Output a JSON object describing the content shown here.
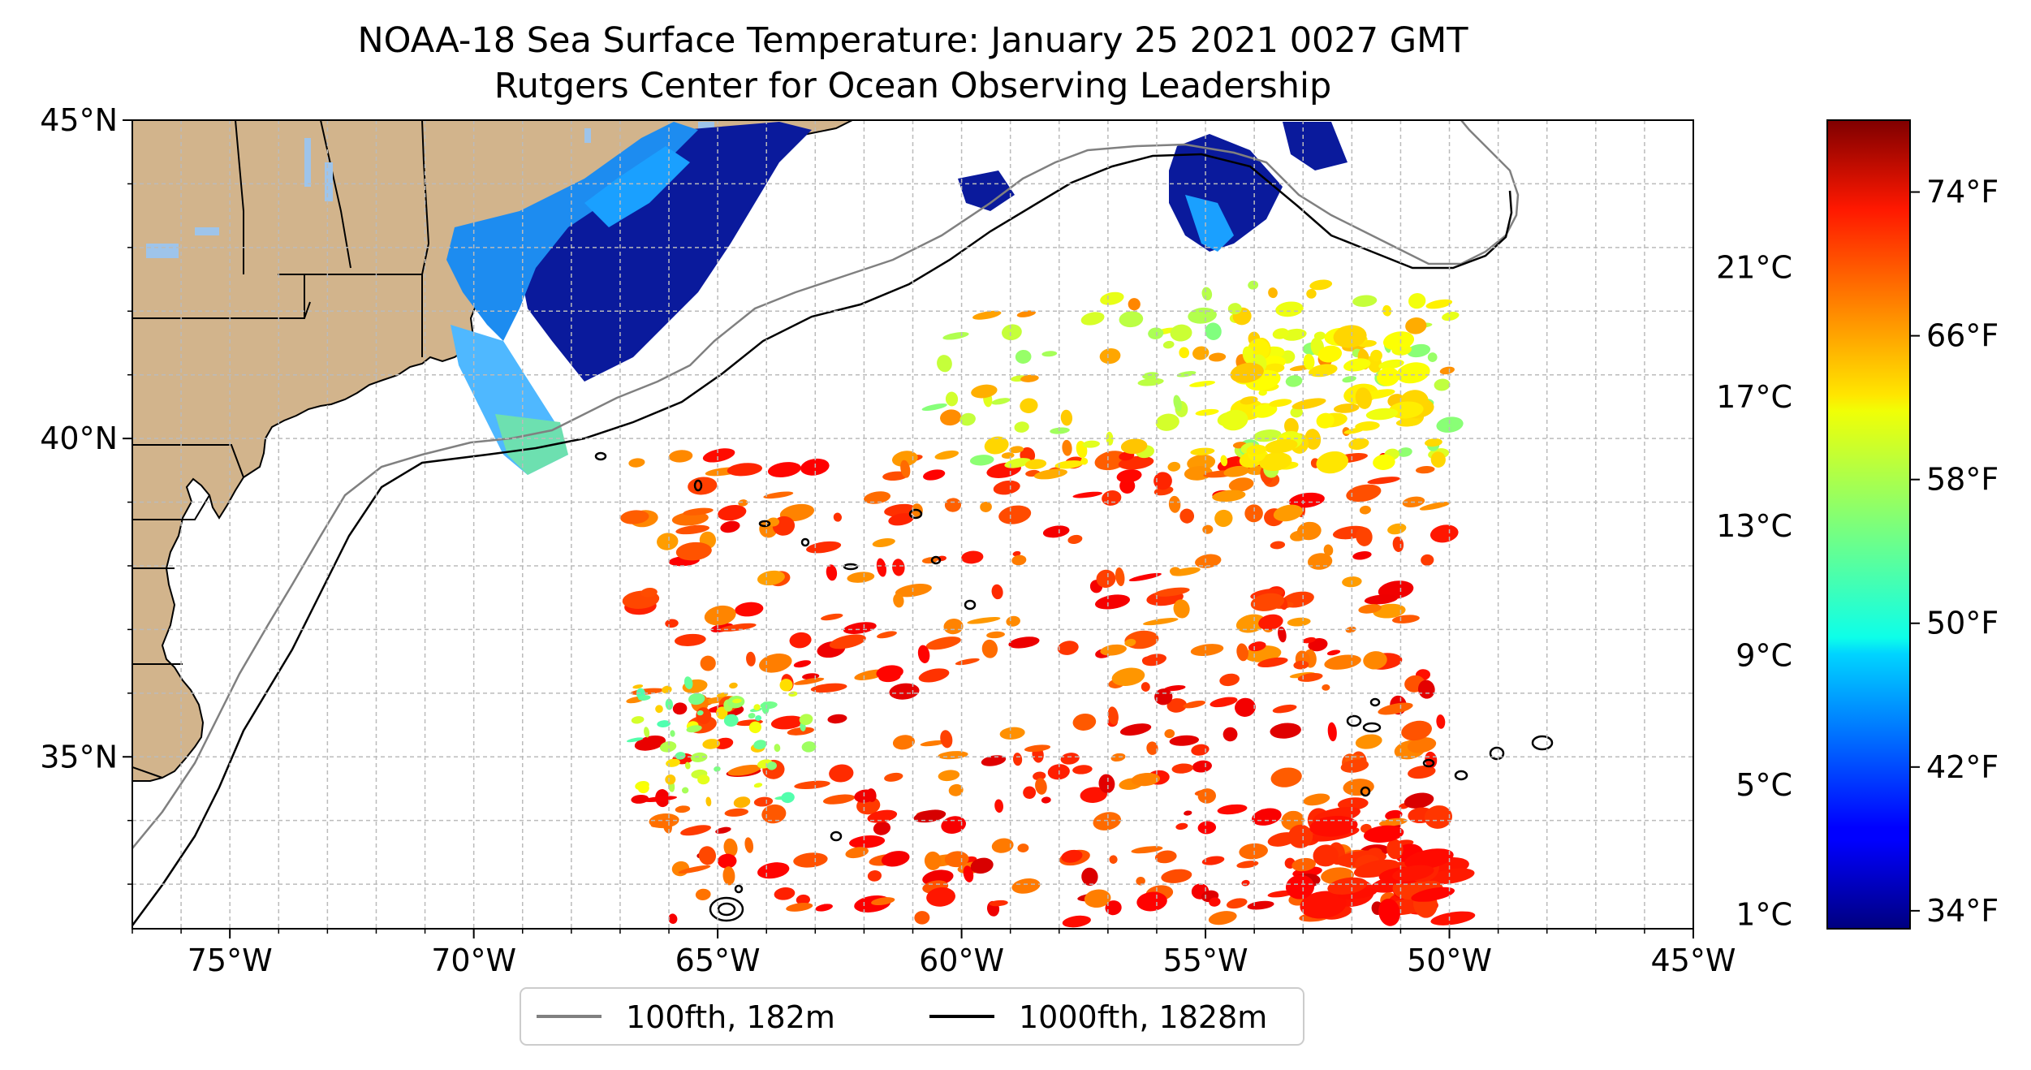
{
  "title": "NOAA-18 Sea Surface Temperature: January 25 2021 0027 GMT",
  "subtitle": "Rutgers Center for Ocean Observing Leadership",
  "map": {
    "lon_range": [
      -77,
      -45
    ],
    "lat_range": [
      32.3,
      45
    ],
    "lon_ticks": [
      {
        "value": -75,
        "label": "75°W"
      },
      {
        "value": -70,
        "label": "70°W"
      },
      {
        "value": -65,
        "label": "65°W"
      },
      {
        "value": -60,
        "label": "60°W"
      },
      {
        "value": -55,
        "label": "55°W"
      },
      {
        "value": -50,
        "label": "50°W"
      },
      {
        "value": -45,
        "label": "45°W"
      }
    ],
    "lat_ticks": [
      {
        "value": 45,
        "label": "45°N"
      },
      {
        "value": 40,
        "label": "40°N"
      },
      {
        "value": 35,
        "label": "35°N"
      }
    ],
    "gridlines": true,
    "land_color": "#d2b48c",
    "lake_color": "#9ec4ea"
  },
  "legend": {
    "position": "bottom-center",
    "items": [
      {
        "label": "100fth, 182m",
        "color": "#808080"
      },
      {
        "label": "1000fth, 1828m",
        "color": "#000000"
      }
    ]
  },
  "colorbar": {
    "colormap": "jet",
    "range_f": [
      33,
      78
    ],
    "fahrenheit_ticks": [
      {
        "value": 74,
        "label": "74°F"
      },
      {
        "value": 66,
        "label": "66°F"
      },
      {
        "value": 58,
        "label": "58°F"
      },
      {
        "value": 50,
        "label": "50°F"
      },
      {
        "value": 42,
        "label": "42°F"
      },
      {
        "value": 34,
        "label": "34°F"
      }
    ],
    "celsius_ticks": [
      {
        "value": 21,
        "label": "21°C"
      },
      {
        "value": 17,
        "label": "17°C"
      },
      {
        "value": 13,
        "label": "13°C"
      },
      {
        "value": 9,
        "label": "9°C"
      },
      {
        "value": 5,
        "label": "5°C"
      },
      {
        "value": 1,
        "label": "1°C"
      }
    ]
  }
}
